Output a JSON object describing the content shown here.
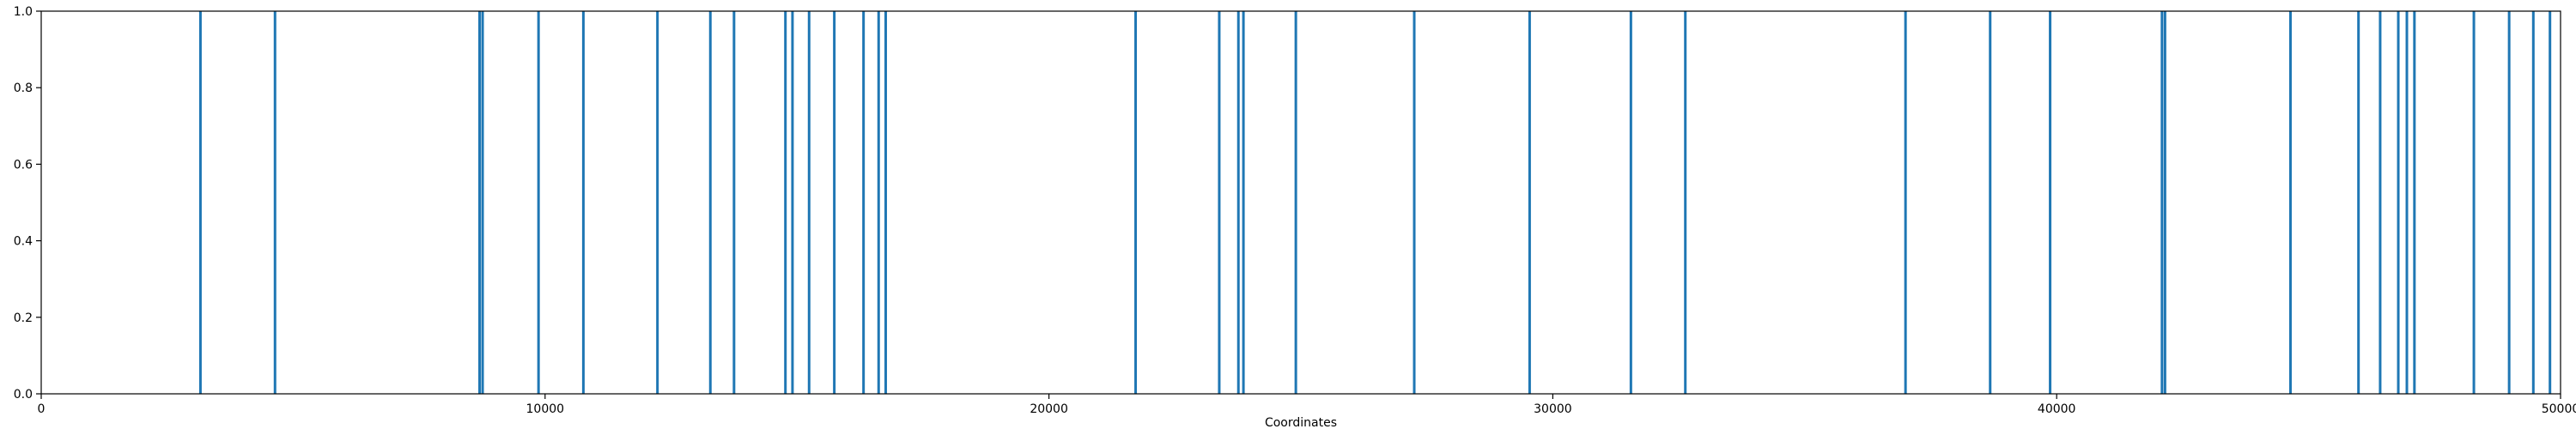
{
  "chart_data": {
    "type": "bar",
    "xlabel": "Coordinates",
    "ylabel": "",
    "xlim": [
      0,
      50000
    ],
    "ylim": [
      0,
      1.0
    ],
    "grid": false,
    "bar_color": "#1f77b4",
    "xticks": [
      0,
      10000,
      20000,
      30000,
      40000,
      50000
    ],
    "xtick_labels": [
      "0",
      "10000",
      "20000",
      "30000",
      "40000",
      "50000"
    ],
    "yticks": [
      0.0,
      0.2,
      0.4,
      0.6,
      0.8,
      1.0
    ],
    "ytick_labels": [
      "0.0",
      "0.2",
      "0.4",
      "0.6",
      "0.8",
      "1.0"
    ],
    "series": [
      {
        "x": [
          3160,
          4640,
          8700,
          8760,
          9870,
          10760,
          12230,
          13280,
          13750,
          14770,
          14910,
          15240,
          15740,
          16320,
          16620,
          16760,
          21720,
          23380,
          23760,
          23860,
          24900,
          27250,
          29540,
          31550,
          32630,
          37000,
          38680,
          39870,
          42090,
          42150,
          44640,
          45990,
          46420,
          46780,
          46950,
          47100,
          48280,
          48980,
          49460,
          49790
        ],
        "values": [
          1,
          1,
          1,
          1,
          1,
          1,
          1,
          1,
          1,
          1,
          1,
          1,
          1,
          1,
          1,
          1,
          1,
          1,
          1,
          1,
          1,
          1,
          1,
          1,
          1,
          1,
          1,
          1,
          1,
          1,
          1,
          1,
          1,
          1,
          1,
          1,
          1,
          1,
          1,
          1
        ]
      }
    ]
  }
}
